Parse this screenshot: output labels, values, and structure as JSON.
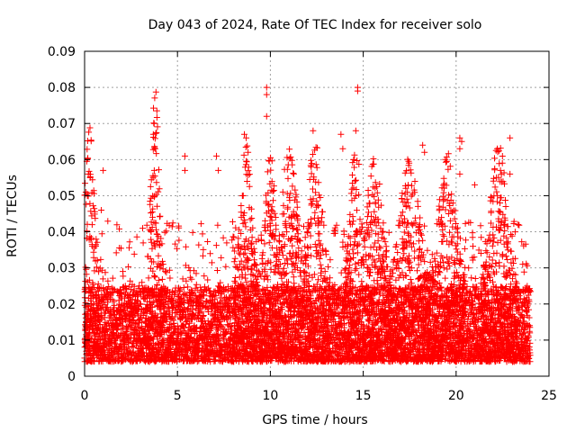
{
  "chart_data": {
    "type": "scatter",
    "title": "Day 043 of 2024, Rate Of TEC Index for receiver solo",
    "xlabel": "GPS time / hours",
    "ylabel": "ROTI / TECUs",
    "xlim": [
      0,
      25
    ],
    "ylim": [
      0,
      0.09
    ],
    "xticks": [
      0,
      5,
      10,
      15,
      20,
      25
    ],
    "xtick_labels": [
      "0",
      "5",
      "10",
      "15",
      "20",
      "25"
    ],
    "yticks": [
      0,
      0.01,
      0.02,
      0.03,
      0.04,
      0.05,
      0.06,
      0.07,
      0.08,
      0.09
    ],
    "ytick_labels": [
      "0",
      "0.01",
      "0.02",
      "0.03",
      "0.04",
      "0.05",
      "0.06",
      "0.07",
      "0.08",
      "0.09"
    ],
    "grid": true,
    "marker": "+",
    "series": [
      {
        "name": "ROTI",
        "color": "#ff0000",
        "x_range": [
          0,
          24
        ],
        "sample_interval_hours": 0.004,
        "baseline_range": [
          0.004,
          0.025
        ],
        "highlighted_points": [
          {
            "x": 0.2,
            "y": 0.056
          },
          {
            "x": 0.3,
            "y": 0.055
          },
          {
            "x": 0.15,
            "y": 0.05
          },
          {
            "x": 1.0,
            "y": 0.057
          },
          {
            "x": 0.9,
            "y": 0.046
          },
          {
            "x": 3.7,
            "y": 0.067
          },
          {
            "x": 3.8,
            "y": 0.063
          },
          {
            "x": 3.75,
            "y": 0.057
          },
          {
            "x": 5.4,
            "y": 0.061
          },
          {
            "x": 5.4,
            "y": 0.057
          },
          {
            "x": 7.1,
            "y": 0.061
          },
          {
            "x": 7.2,
            "y": 0.057
          },
          {
            "x": 8.6,
            "y": 0.067
          },
          {
            "x": 8.7,
            "y": 0.066
          },
          {
            "x": 8.8,
            "y": 0.062
          },
          {
            "x": 9.8,
            "y": 0.08
          },
          {
            "x": 9.8,
            "y": 0.078
          },
          {
            "x": 9.8,
            "y": 0.072
          },
          {
            "x": 12.3,
            "y": 0.068
          },
          {
            "x": 12.2,
            "y": 0.058
          },
          {
            "x": 13.8,
            "y": 0.067
          },
          {
            "x": 13.9,
            "y": 0.063
          },
          {
            "x": 14.7,
            "y": 0.08
          },
          {
            "x": 14.7,
            "y": 0.079
          },
          {
            "x": 14.6,
            "y": 0.068
          },
          {
            "x": 14.5,
            "y": 0.06
          },
          {
            "x": 14.6,
            "y": 0.05
          },
          {
            "x": 18.2,
            "y": 0.064
          },
          {
            "x": 18.3,
            "y": 0.062
          },
          {
            "x": 20.2,
            "y": 0.066
          },
          {
            "x": 20.3,
            "y": 0.065
          },
          {
            "x": 20.2,
            "y": 0.063
          },
          {
            "x": 20.2,
            "y": 0.056
          },
          {
            "x": 21.0,
            "y": 0.053
          },
          {
            "x": 22.9,
            "y": 0.066
          },
          {
            "x": 22.9,
            "y": 0.056
          }
        ],
        "activity_bursts": [
          {
            "center": 0.25,
            "width": 0.35,
            "peak": 0.045
          },
          {
            "center": 3.8,
            "width": 0.3,
            "peak": 0.055
          },
          {
            "center": 8.7,
            "width": 0.4,
            "peak": 0.04
          },
          {
            "center": 10.0,
            "width": 0.35,
            "peak": 0.04
          },
          {
            "center": 11.0,
            "width": 0.6,
            "peak": 0.04
          },
          {
            "center": 12.4,
            "width": 0.5,
            "peak": 0.042
          },
          {
            "center": 14.6,
            "width": 0.4,
            "peak": 0.042
          },
          {
            "center": 15.6,
            "width": 0.6,
            "peak": 0.036
          },
          {
            "center": 17.5,
            "width": 0.7,
            "peak": 0.036
          },
          {
            "center": 19.5,
            "width": 0.6,
            "peak": 0.038
          },
          {
            "center": 22.3,
            "width": 0.6,
            "peak": 0.042
          }
        ]
      }
    ]
  }
}
